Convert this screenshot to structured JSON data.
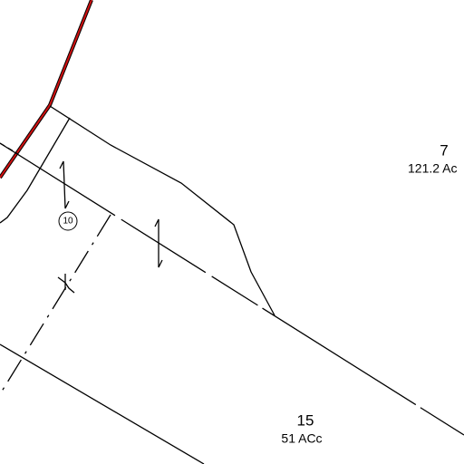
{
  "parcels": [
    {
      "number": "7",
      "area": "121.2 Ac"
    },
    {
      "number": "15",
      "area": "51 ACc"
    }
  ],
  "marker": {
    "label": "10"
  }
}
